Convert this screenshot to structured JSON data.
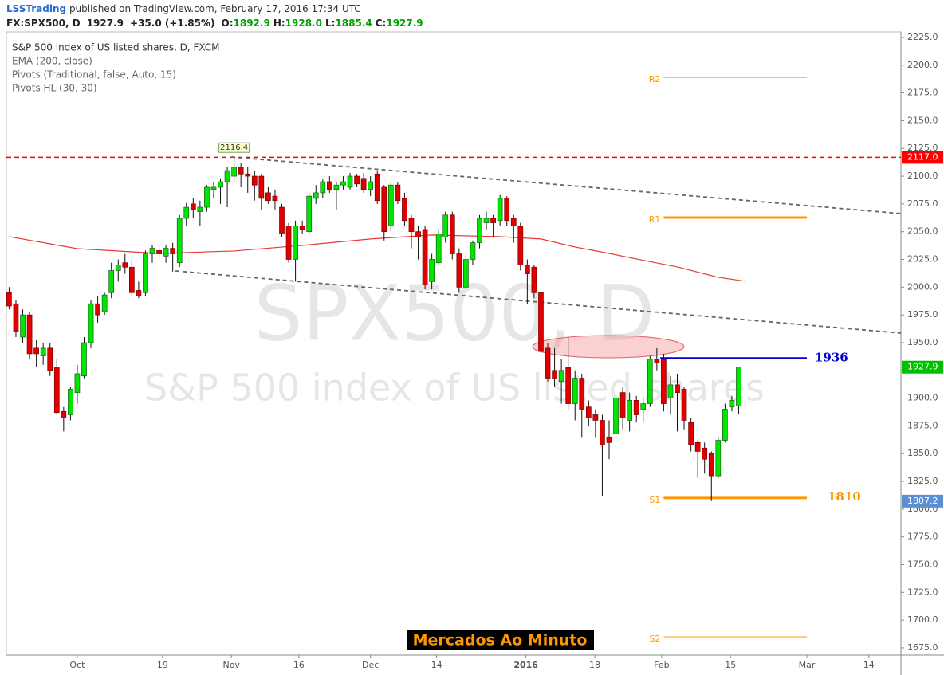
{
  "header": {
    "author": "LSSTrading",
    "published": " published on TradingView.com, February 17, 2016 17:34 UTC",
    "symbol": "FX:SPX500, D",
    "last": "1927.9",
    "change": "+35.0 (+1.85%)",
    "quote": [
      {
        "label": "O:",
        "value": "1892.9"
      },
      {
        "label": "H:",
        "value": "1928.0"
      },
      {
        "label": "L:",
        "value": "1885.4"
      },
      {
        "label": "C:",
        "value": "1927.9"
      }
    ]
  },
  "legend": [
    "S&P 500 index of US listed shares, D, FXCM",
    "EMA (200, close)",
    "Pivots (Traditional, false, Auto, 15)",
    "Pivots HL (30, 30)"
  ],
  "watermark": {
    "symbol": "SPX500, D",
    "description": "S&P 500 index of US listed shares"
  },
  "badge": "Mercados Ao Minuto",
  "chart_data": {
    "type": "candlestick",
    "xlim": [
      -10.4,
      120.8
    ],
    "ylim": [
      1668.5,
      2230
    ],
    "xticks": [
      {
        "value": 0,
        "label": "Oct"
      },
      {
        "value": 12.5,
        "label": "19"
      },
      {
        "value": 22.6,
        "label": "Nov"
      },
      {
        "value": 32.5,
        "label": "16"
      },
      {
        "value": 43,
        "label": "Dec"
      },
      {
        "value": 52.7,
        "label": "14"
      },
      {
        "value": 65.8,
        "label": "2016"
      },
      {
        "value": 75.9,
        "label": "18"
      },
      {
        "value": 85.7,
        "label": "Feb"
      },
      {
        "value": 95.8,
        "label": "15"
      },
      {
        "value": 107,
        "label": "Mar"
      },
      {
        "value": 116.1,
        "label": "14"
      }
    ],
    "yticks": [
      {
        "value": 1675,
        "label": "1675.0"
      },
      {
        "value": 1700,
        "label": "1700.0"
      },
      {
        "value": 1725,
        "label": "1725.0"
      },
      {
        "value": 1750,
        "label": "1750.0"
      },
      {
        "value": 1775,
        "label": "1775.0"
      },
      {
        "value": 1800,
        "label": "1800.0"
      },
      {
        "value": 1825,
        "label": "1825.0"
      },
      {
        "value": 1850,
        "label": "1850.0"
      },
      {
        "value": 1875,
        "label": "1875.0"
      },
      {
        "value": 1900,
        "label": "1900.0"
      },
      {
        "value": 1925,
        "label": "1925.0"
      },
      {
        "value": 1950,
        "label": "1950.0"
      },
      {
        "value": 1975,
        "label": "1975.0"
      },
      {
        "value": 2000,
        "label": "2000.0"
      },
      {
        "value": 2025,
        "label": "2025.0"
      },
      {
        "value": 2050,
        "label": "2050.0"
      },
      {
        "value": 2075,
        "label": "2075.0"
      },
      {
        "value": 2100,
        "label": "2100.0"
      },
      {
        "value": 2125,
        "label": "2125.0"
      },
      {
        "value": 2150,
        "label": "2150.0"
      },
      {
        "value": 2175,
        "label": "2175.0"
      },
      {
        "value": 2200,
        "label": "2200.0"
      },
      {
        "value": 2225,
        "label": "2225.0"
      }
    ],
    "up_color": "#00e600",
    "down_color": "#e00000",
    "x": [
      -10,
      -9,
      -8,
      -7,
      -6,
      -5,
      -4,
      -3,
      -2,
      -1,
      0,
      1,
      2,
      3,
      4,
      5,
      6,
      7,
      8,
      9,
      10,
      11,
      12,
      13,
      14,
      15,
      16,
      17,
      18,
      19,
      20,
      21,
      22,
      23,
      24,
      25,
      26,
      27,
      28,
      29,
      30,
      31,
      32,
      33,
      34,
      35,
      36,
      37,
      38,
      39,
      40,
      41,
      42,
      43,
      44,
      45,
      46,
      47,
      48,
      49,
      50,
      51,
      52,
      53,
      54,
      55,
      56,
      57,
      58,
      59,
      60,
      61,
      62,
      63,
      64,
      65,
      66,
      67,
      68,
      69,
      70,
      71,
      72,
      73,
      74,
      75,
      76,
      77,
      78,
      79,
      80,
      81,
      82,
      83,
      84,
      85,
      86,
      87,
      88,
      89,
      90,
      91,
      92,
      93,
      94,
      95,
      96,
      97
    ],
    "open": [
      1995,
      1985,
      1955,
      1975,
      1945,
      1938,
      1945,
      1928,
      1888,
      1885,
      1905,
      1920,
      1950,
      1985,
      1978,
      1995,
      2015,
      2022,
      2018,
      1997,
      1995,
      2030,
      2033,
      2028,
      2035,
      2022,
      2062,
      2075,
      2068,
      2072,
      2088,
      2090,
      2095,
      2100,
      2108,
      2102,
      2100,
      2100,
      2085,
      2082,
      2072,
      2055,
      2025,
      2055,
      2050,
      2080,
      2085,
      2095,
      2088,
      2092,
      2090,
      2100,
      2098,
      2088,
      2102,
      2090,
      2055,
      2092,
      2080,
      2062,
      2050,
      2052,
      2005,
      2022,
      2045,
      2065,
      2030,
      2000,
      2025,
      2040,
      2058,
      2062,
      2060,
      2080,
      2062,
      2055,
      2020,
      2018,
      1995,
      1945,
      1925,
      1915,
      1928,
      1895,
      1918,
      1892,
      1885,
      1880,
      1865,
      1868,
      1905,
      1880,
      1898,
      1890,
      1895,
      1935,
      1935,
      1900,
      1912,
      1908,
      1878,
      1860,
      1855,
      1850,
      1830,
      1862,
      1892,
      1892.9
    ],
    "high": [
      2000,
      1988,
      1980,
      1978,
      1952,
      1950,
      1950,
      1935,
      1892,
      1910,
      1930,
      1955,
      1988,
      1992,
      1995,
      2022,
      2025,
      2030,
      2025,
      2005,
      2033,
      2038,
      2038,
      2038,
      2040,
      2065,
      2076,
      2080,
      2078,
      2092,
      2095,
      2098,
      2108,
      2116.4,
      2112,
      2108,
      2105,
      2102,
      2090,
      2088,
      2075,
      2058,
      2060,
      2060,
      2085,
      2092,
      2097,
      2100,
      2095,
      2100,
      2103,
      2102,
      2103,
      2100,
      2105,
      2092,
      2095,
      2095,
      2085,
      2065,
      2055,
      2055,
      2030,
      2052,
      2068,
      2068,
      2035,
      2030,
      2042,
      2065,
      2068,
      2065,
      2083,
      2082,
      2065,
      2058,
      2025,
      2020,
      1998,
      1950,
      1945,
      1935,
      1955,
      1925,
      1922,
      1898,
      1890,
      1885,
      1880,
      1905,
      1910,
      1905,
      1902,
      1900,
      1938,
      1945,
      1940,
      1920,
      1922,
      1910,
      1882,
      1862,
      1860,
      1852,
      1865,
      1895,
      1902,
      1928
    ],
    "low": [
      1980,
      1955,
      1950,
      1935,
      1928,
      1930,
      1920,
      1885,
      1870,
      1880,
      1895,
      1918,
      1945,
      1968,
      1975,
      1990,
      2005,
      2012,
      1992,
      1990,
      1992,
      2022,
      2025,
      2022,
      2014,
      2018,
      2055,
      2062,
      2055,
      2068,
      2080,
      2075,
      2072,
      2095,
      2090,
      2085,
      2078,
      2070,
      2075,
      2070,
      2045,
      2022,
      2005,
      2048,
      2048,
      2075,
      2080,
      2085,
      2070,
      2088,
      2088,
      2090,
      2085,
      2082,
      2075,
      2042,
      2050,
      2075,
      2055,
      2035,
      2025,
      1998,
      1998,
      2020,
      2040,
      2025,
      1995,
      1998,
      2020,
      2035,
      2052,
      2045,
      2055,
      2055,
      2040,
      2015,
      1985,
      1990,
      1938,
      1915,
      1910,
      1895,
      1890,
      1880,
      1865,
      1875,
      1865,
      1812,
      1845,
      1865,
      1872,
      1870,
      1878,
      1878,
      1892,
      1925,
      1888,
      1885,
      1870,
      1872,
      1852,
      1828,
      1832,
      1807.2,
      1828,
      1860,
      1888,
      1885.4
    ],
    "close": [
      1983,
      1960,
      1975,
      1940,
      1940,
      1945,
      1925,
      1887,
      1882,
      1908,
      1922,
      1950,
      1985,
      1975,
      1993,
      2015,
      2020,
      2018,
      1995,
      1992,
      2030,
      2035,
      2030,
      2035,
      2030,
      2062,
      2072,
      2070,
      2072,
      2090,
      2090,
      2095,
      2105,
      2108,
      2102,
      2100,
      2092,
      2080,
      2078,
      2078,
      2048,
      2025,
      2055,
      2052,
      2082,
      2085,
      2095,
      2088,
      2092,
      2095,
      2100,
      2093,
      2088,
      2095,
      2078,
      2050,
      2092,
      2078,
      2060,
      2050,
      2045,
      2002,
      2025,
      2048,
      2065,
      2030,
      2000,
      2025,
      2040,
      2062,
      2062,
      2058,
      2080,
      2060,
      2055,
      2020,
      2012,
      1995,
      1942,
      1918,
      1918,
      1925,
      1895,
      1918,
      1890,
      1882,
      1880,
      1858,
      1860,
      1900,
      1882,
      1898,
      1885,
      1895,
      1935,
      1932,
      1895,
      1912,
      1905,
      1880,
      1858,
      1852,
      1845,
      1830,
      1862,
      1890,
      1898,
      1927.9
    ],
    "ema": {
      "color": "#e53935",
      "x": [
        -10,
        0,
        12,
        23,
        33,
        43,
        52,
        62,
        68,
        73,
        78,
        82,
        88,
        94,
        98
      ],
      "values": [
        2045.5,
        2034.7,
        2030.4,
        2032.6,
        2037.6,
        2043.4,
        2047,
        2045.5,
        2043.4,
        2036.2,
        2030.4,
        2025.4,
        2018.2,
        2008.9,
        2005.3
      ]
    },
    "pivots": {
      "color": "#ff9800",
      "x": [
        86,
        107
      ],
      "levels": [
        {
          "label": "R2",
          "value": 2189
        },
        {
          "label": "R1",
          "value": 2062.7
        },
        {
          "label": "S1",
          "value": 1810
        },
        {
          "label": "S2",
          "value": 1685
        }
      ]
    },
    "resistance": {
      "value": 1936,
      "color": "#0000cc",
      "x": [
        85.5,
        107
      ]
    },
    "trend_lines": [
      {
        "x": [
          22.6,
          120.8
        ],
        "values": [
          2117.3,
          2066.3
        ]
      },
      {
        "x": [
          14.4,
          120.8
        ],
        "values": [
          2014.6,
          1958.6
        ]
      }
    ],
    "pivot_high": {
      "x": 23,
      "value": 2116.4,
      "label": "2116.4"
    },
    "price_labels": [
      {
        "value": 2117,
        "label": "2117.0",
        "color": "#ff0000"
      },
      {
        "value": 1927.9,
        "label": "1927.9",
        "color": "#00c000"
      },
      {
        "value": 1807.2,
        "label": "1807.2",
        "color": "#5b8fd4"
      }
    ]
  }
}
